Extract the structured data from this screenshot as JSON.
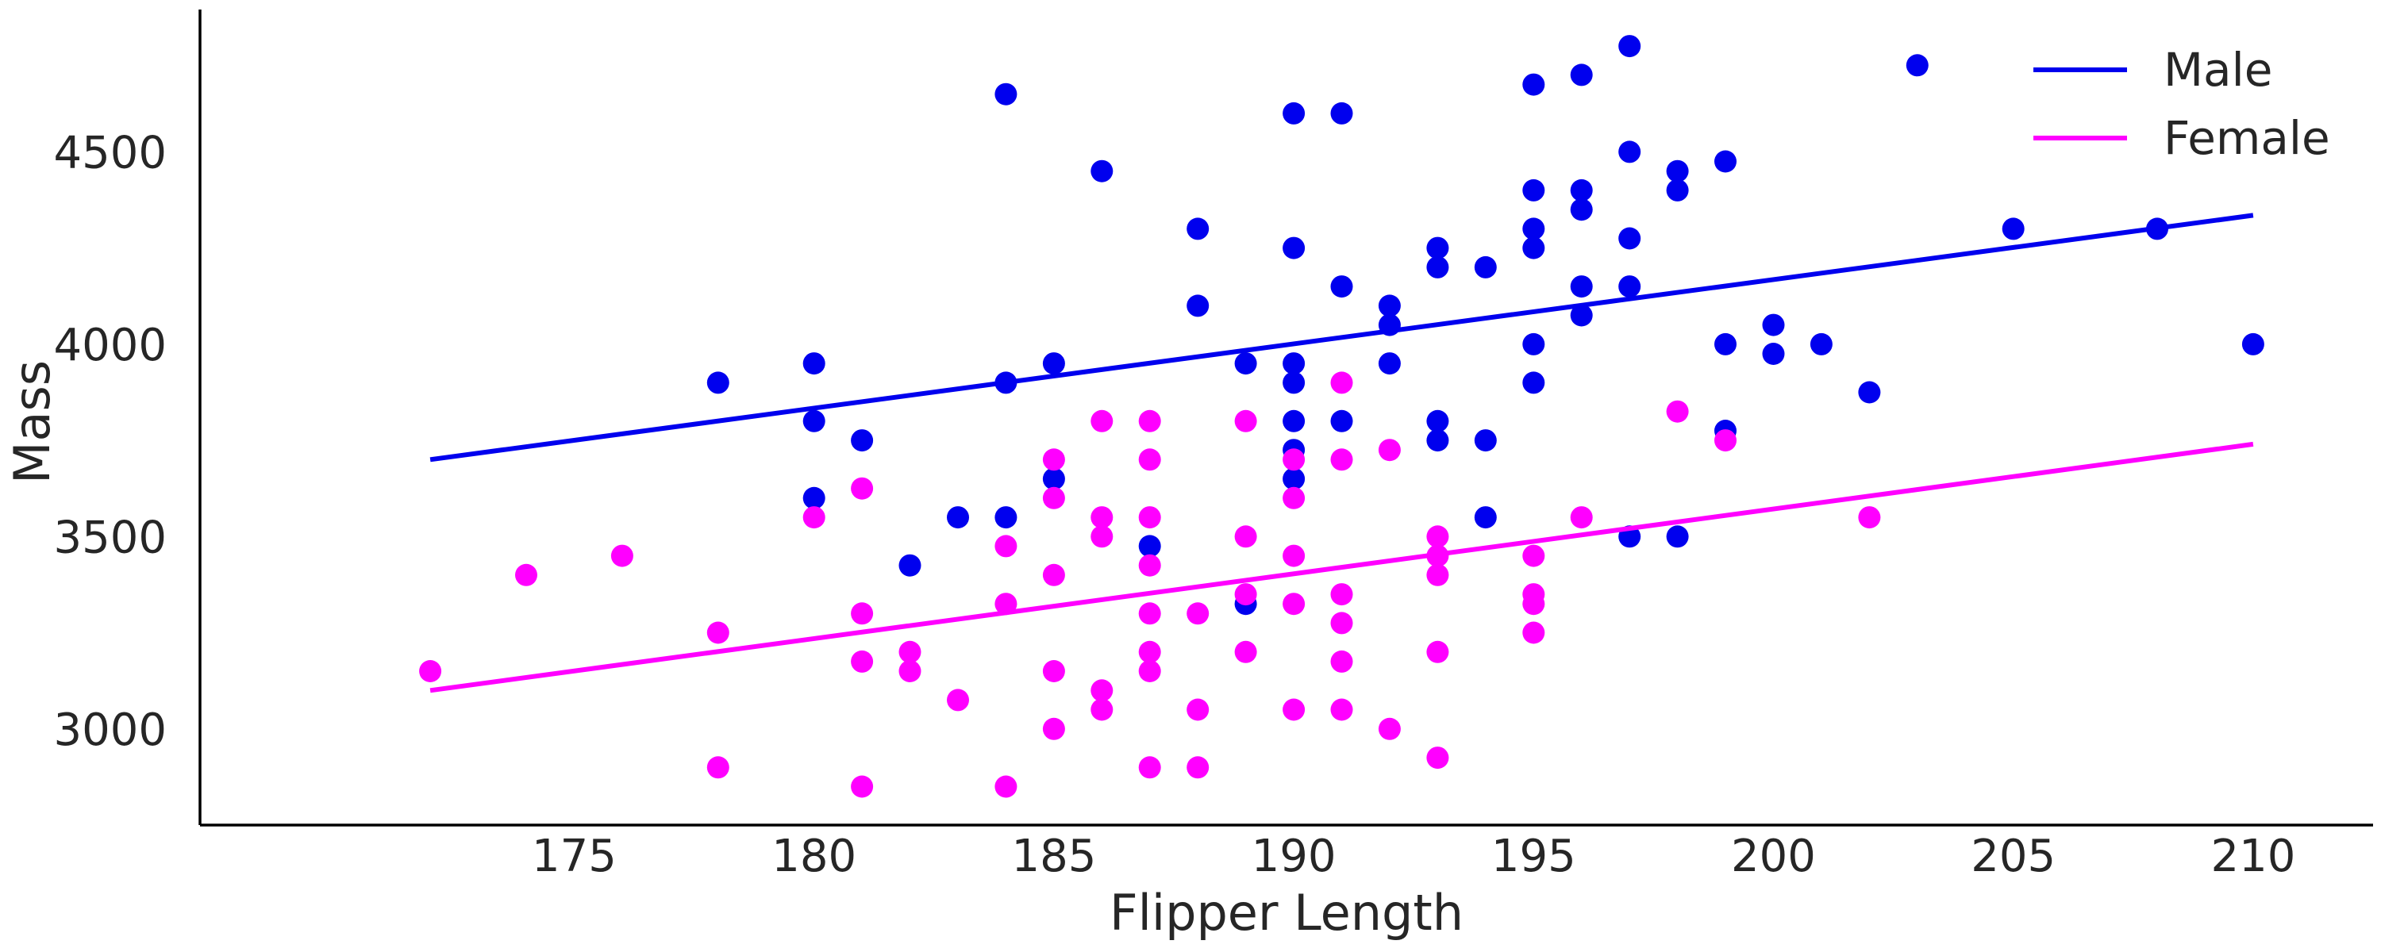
{
  "chart_data": {
    "type": "scatter",
    "title": "",
    "xlabel": "Flipper Length",
    "ylabel": "Mass",
    "xlim": [
      167.2,
      212.5
    ],
    "ylim": [
      2750,
      4870
    ],
    "xticks": [
      175,
      180,
      185,
      190,
      195,
      200,
      205,
      210
    ],
    "yticks": [
      3000,
      3500,
      4000,
      4500
    ],
    "grid": false,
    "legend_position": "top-right",
    "series": [
      {
        "name": "Male",
        "color": "#0000ee",
        "points": [
          [
            178,
            3900
          ],
          [
            180,
            3950
          ],
          [
            180,
            3800
          ],
          [
            180,
            3600
          ],
          [
            181,
            3750
          ],
          [
            182,
            3425
          ],
          [
            183,
            3550
          ],
          [
            184,
            4650
          ],
          [
            184,
            3900
          ],
          [
            184,
            3550
          ],
          [
            185,
            3950
          ],
          [
            185,
            3650
          ],
          [
            186,
            4450
          ],
          [
            187,
            3475
          ],
          [
            188,
            4300
          ],
          [
            188,
            4100
          ],
          [
            189,
            3950
          ],
          [
            189,
            3325
          ],
          [
            190,
            4600
          ],
          [
            190,
            4250
          ],
          [
            190,
            3950
          ],
          [
            190,
            3900
          ],
          [
            190,
            3800
          ],
          [
            190,
            3725
          ],
          [
            190,
            3650
          ],
          [
            191,
            4600
          ],
          [
            191,
            4150
          ],
          [
            191,
            3800
          ],
          [
            192,
            4100
          ],
          [
            192,
            4050
          ],
          [
            192,
            3950
          ],
          [
            193,
            4250
          ],
          [
            193,
            4200
          ],
          [
            193,
            3800
          ],
          [
            193,
            3750
          ],
          [
            194,
            4200
          ],
          [
            194,
            3750
          ],
          [
            194,
            3550
          ],
          [
            195,
            4675
          ],
          [
            195,
            4400
          ],
          [
            195,
            4300
          ],
          [
            195,
            4250
          ],
          [
            195,
            4000
          ],
          [
            195,
            3900
          ],
          [
            196,
            4700
          ],
          [
            196,
            4400
          ],
          [
            196,
            4350
          ],
          [
            196,
            4150
          ],
          [
            196,
            4075
          ],
          [
            197,
            4775
          ],
          [
            197,
            4500
          ],
          [
            197,
            4275
          ],
          [
            197,
            4150
          ],
          [
            197,
            3500
          ],
          [
            198,
            4450
          ],
          [
            198,
            4400
          ],
          [
            198,
            3500
          ],
          [
            199,
            4475
          ],
          [
            199,
            4000
          ],
          [
            199,
            3775
          ],
          [
            200,
            4050
          ],
          [
            200,
            3975
          ],
          [
            201,
            4000
          ],
          [
            202,
            3875
          ],
          [
            203,
            4725
          ],
          [
            205,
            4300
          ],
          [
            208,
            4300
          ],
          [
            210,
            4000
          ]
        ],
        "fit_line": [
          [
            172,
            3700
          ],
          [
            210,
            4335
          ]
        ]
      },
      {
        "name": "Female",
        "color": "#ff00ff",
        "points": [
          [
            172,
            3150
          ],
          [
            174,
            3400
          ],
          [
            176,
            3450
          ],
          [
            178,
            3250
          ],
          [
            178,
            2900
          ],
          [
            180,
            3550
          ],
          [
            181,
            3625
          ],
          [
            181,
            3300
          ],
          [
            181,
            3175
          ],
          [
            181,
            2850
          ],
          [
            182,
            3200
          ],
          [
            182,
            3150
          ],
          [
            183,
            3075
          ],
          [
            184,
            3475
          ],
          [
            184,
            3325
          ],
          [
            184,
            2850
          ],
          [
            185,
            3700
          ],
          [
            185,
            3600
          ],
          [
            185,
            3400
          ],
          [
            185,
            3150
          ],
          [
            185,
            3000
          ],
          [
            186,
            3800
          ],
          [
            186,
            3550
          ],
          [
            186,
            3500
          ],
          [
            186,
            3100
          ],
          [
            186,
            3050
          ],
          [
            187,
            3800
          ],
          [
            187,
            3700
          ],
          [
            187,
            3550
          ],
          [
            187,
            3425
          ],
          [
            187,
            3300
          ],
          [
            187,
            3200
          ],
          [
            187,
            3150
          ],
          [
            187,
            2900
          ],
          [
            188,
            3300
          ],
          [
            188,
            3050
          ],
          [
            188,
            2900
          ],
          [
            189,
            3800
          ],
          [
            189,
            3500
          ],
          [
            189,
            3350
          ],
          [
            189,
            3200
          ],
          [
            190,
            3700
          ],
          [
            190,
            3600
          ],
          [
            190,
            3450
          ],
          [
            190,
            3325
          ],
          [
            190,
            3050
          ],
          [
            191,
            3900
          ],
          [
            191,
            3700
          ],
          [
            191,
            3350
          ],
          [
            191,
            3275
          ],
          [
            191,
            3175
          ],
          [
            191,
            3050
          ],
          [
            192,
            3725
          ],
          [
            192,
            3000
          ],
          [
            193,
            3500
          ],
          [
            193,
            3450
          ],
          [
            193,
            3400
          ],
          [
            193,
            3200
          ],
          [
            193,
            2925
          ],
          [
            195,
            3450
          ],
          [
            195,
            3350
          ],
          [
            195,
            3325
          ],
          [
            195,
            3250
          ],
          [
            196,
            3550
          ],
          [
            198,
            3825
          ],
          [
            199,
            3750
          ],
          [
            202,
            3550
          ]
        ],
        "fit_line": [
          [
            172,
            3100
          ],
          [
            210,
            3740
          ]
        ]
      }
    ]
  }
}
